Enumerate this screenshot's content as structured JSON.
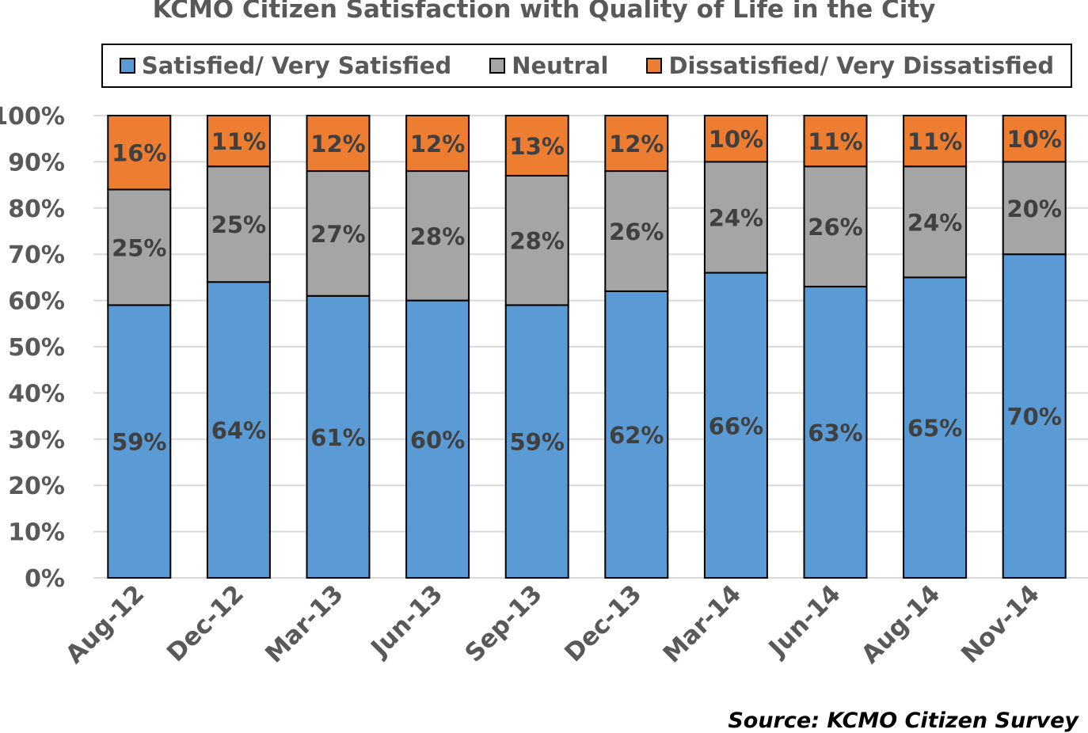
{
  "chart_data": {
    "type": "bar",
    "stacked": true,
    "title": "KCMO Citizen Satisfaction with Quality of Life in the City",
    "categories": [
      "Aug-12",
      "Dec-12",
      "Mar-13",
      "Jun-13",
      "Sep-13",
      "Dec-13",
      "Mar-14",
      "Jun-14",
      "Aug-14",
      "Nov-14"
    ],
    "series": [
      {
        "name": "Satisfied/ Very Satisfied",
        "color": "#5B9BD5",
        "values": [
          59,
          64,
          61,
          60,
          59,
          62,
          66,
          63,
          65,
          70
        ]
      },
      {
        "name": "Neutral",
        "color": "#A5A5A5",
        "values": [
          25,
          25,
          27,
          28,
          28,
          26,
          24,
          26,
          24,
          20
        ]
      },
      {
        "name": "Dissatisfied/ Very Dissatisfied",
        "color": "#ED7D31",
        "values": [
          16,
          11,
          12,
          12,
          13,
          12,
          10,
          11,
          11,
          10
        ]
      }
    ],
    "ylim": [
      0,
      100
    ],
    "yticks": [
      "0%",
      "10%",
      "20%",
      "30%",
      "40%",
      "50%",
      "60%",
      "70%",
      "80%",
      "90%",
      "100%"
    ],
    "grid": true,
    "legend_position": "top",
    "data_labels": true,
    "source": "Source: KCMO Citizen Survey"
  }
}
